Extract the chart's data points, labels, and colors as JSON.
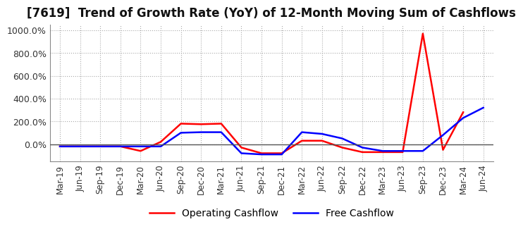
{
  "title": "[7619]  Trend of Growth Rate (YoY) of 12-Month Moving Sum of Cashflows",
  "x_labels": [
    "Mar-19",
    "Jun-19",
    "Sep-19",
    "Dec-19",
    "Mar-20",
    "Jun-20",
    "Sep-20",
    "Dec-20",
    "Mar-21",
    "Jun-21",
    "Sep-21",
    "Dec-21",
    "Mar-22",
    "Jun-22",
    "Sep-22",
    "Dec-22",
    "Mar-23",
    "Jun-23",
    "Sep-23",
    "Dec-23",
    "Mar-24",
    "Jun-24"
  ],
  "operating_cashflow": [
    -20,
    -20,
    -20,
    -20,
    -60,
    20,
    180,
    175,
    180,
    -30,
    -80,
    -80,
    30,
    30,
    -30,
    -70,
    -70,
    -70,
    970,
    -50,
    280,
    null
  ],
  "free_cashflow": [
    -20,
    -20,
    -20,
    -20,
    -20,
    -20,
    100,
    105,
    105,
    -80,
    -90,
    -90,
    105,
    90,
    50,
    -30,
    -60,
    -60,
    -60,
    80,
    230,
    320
  ],
  "operating_color": "#ff0000",
  "free_color": "#0000ff",
  "ylim": [
    -150,
    1050
  ],
  "yticks": [
    0,
    200,
    400,
    600,
    800,
    1000
  ],
  "grid_color": "#aaaaaa",
  "background_color": "#ffffff",
  "title_fontsize": 12,
  "legend_labels": [
    "Operating Cashflow",
    "Free Cashflow"
  ],
  "zero_line_color": "#555555"
}
